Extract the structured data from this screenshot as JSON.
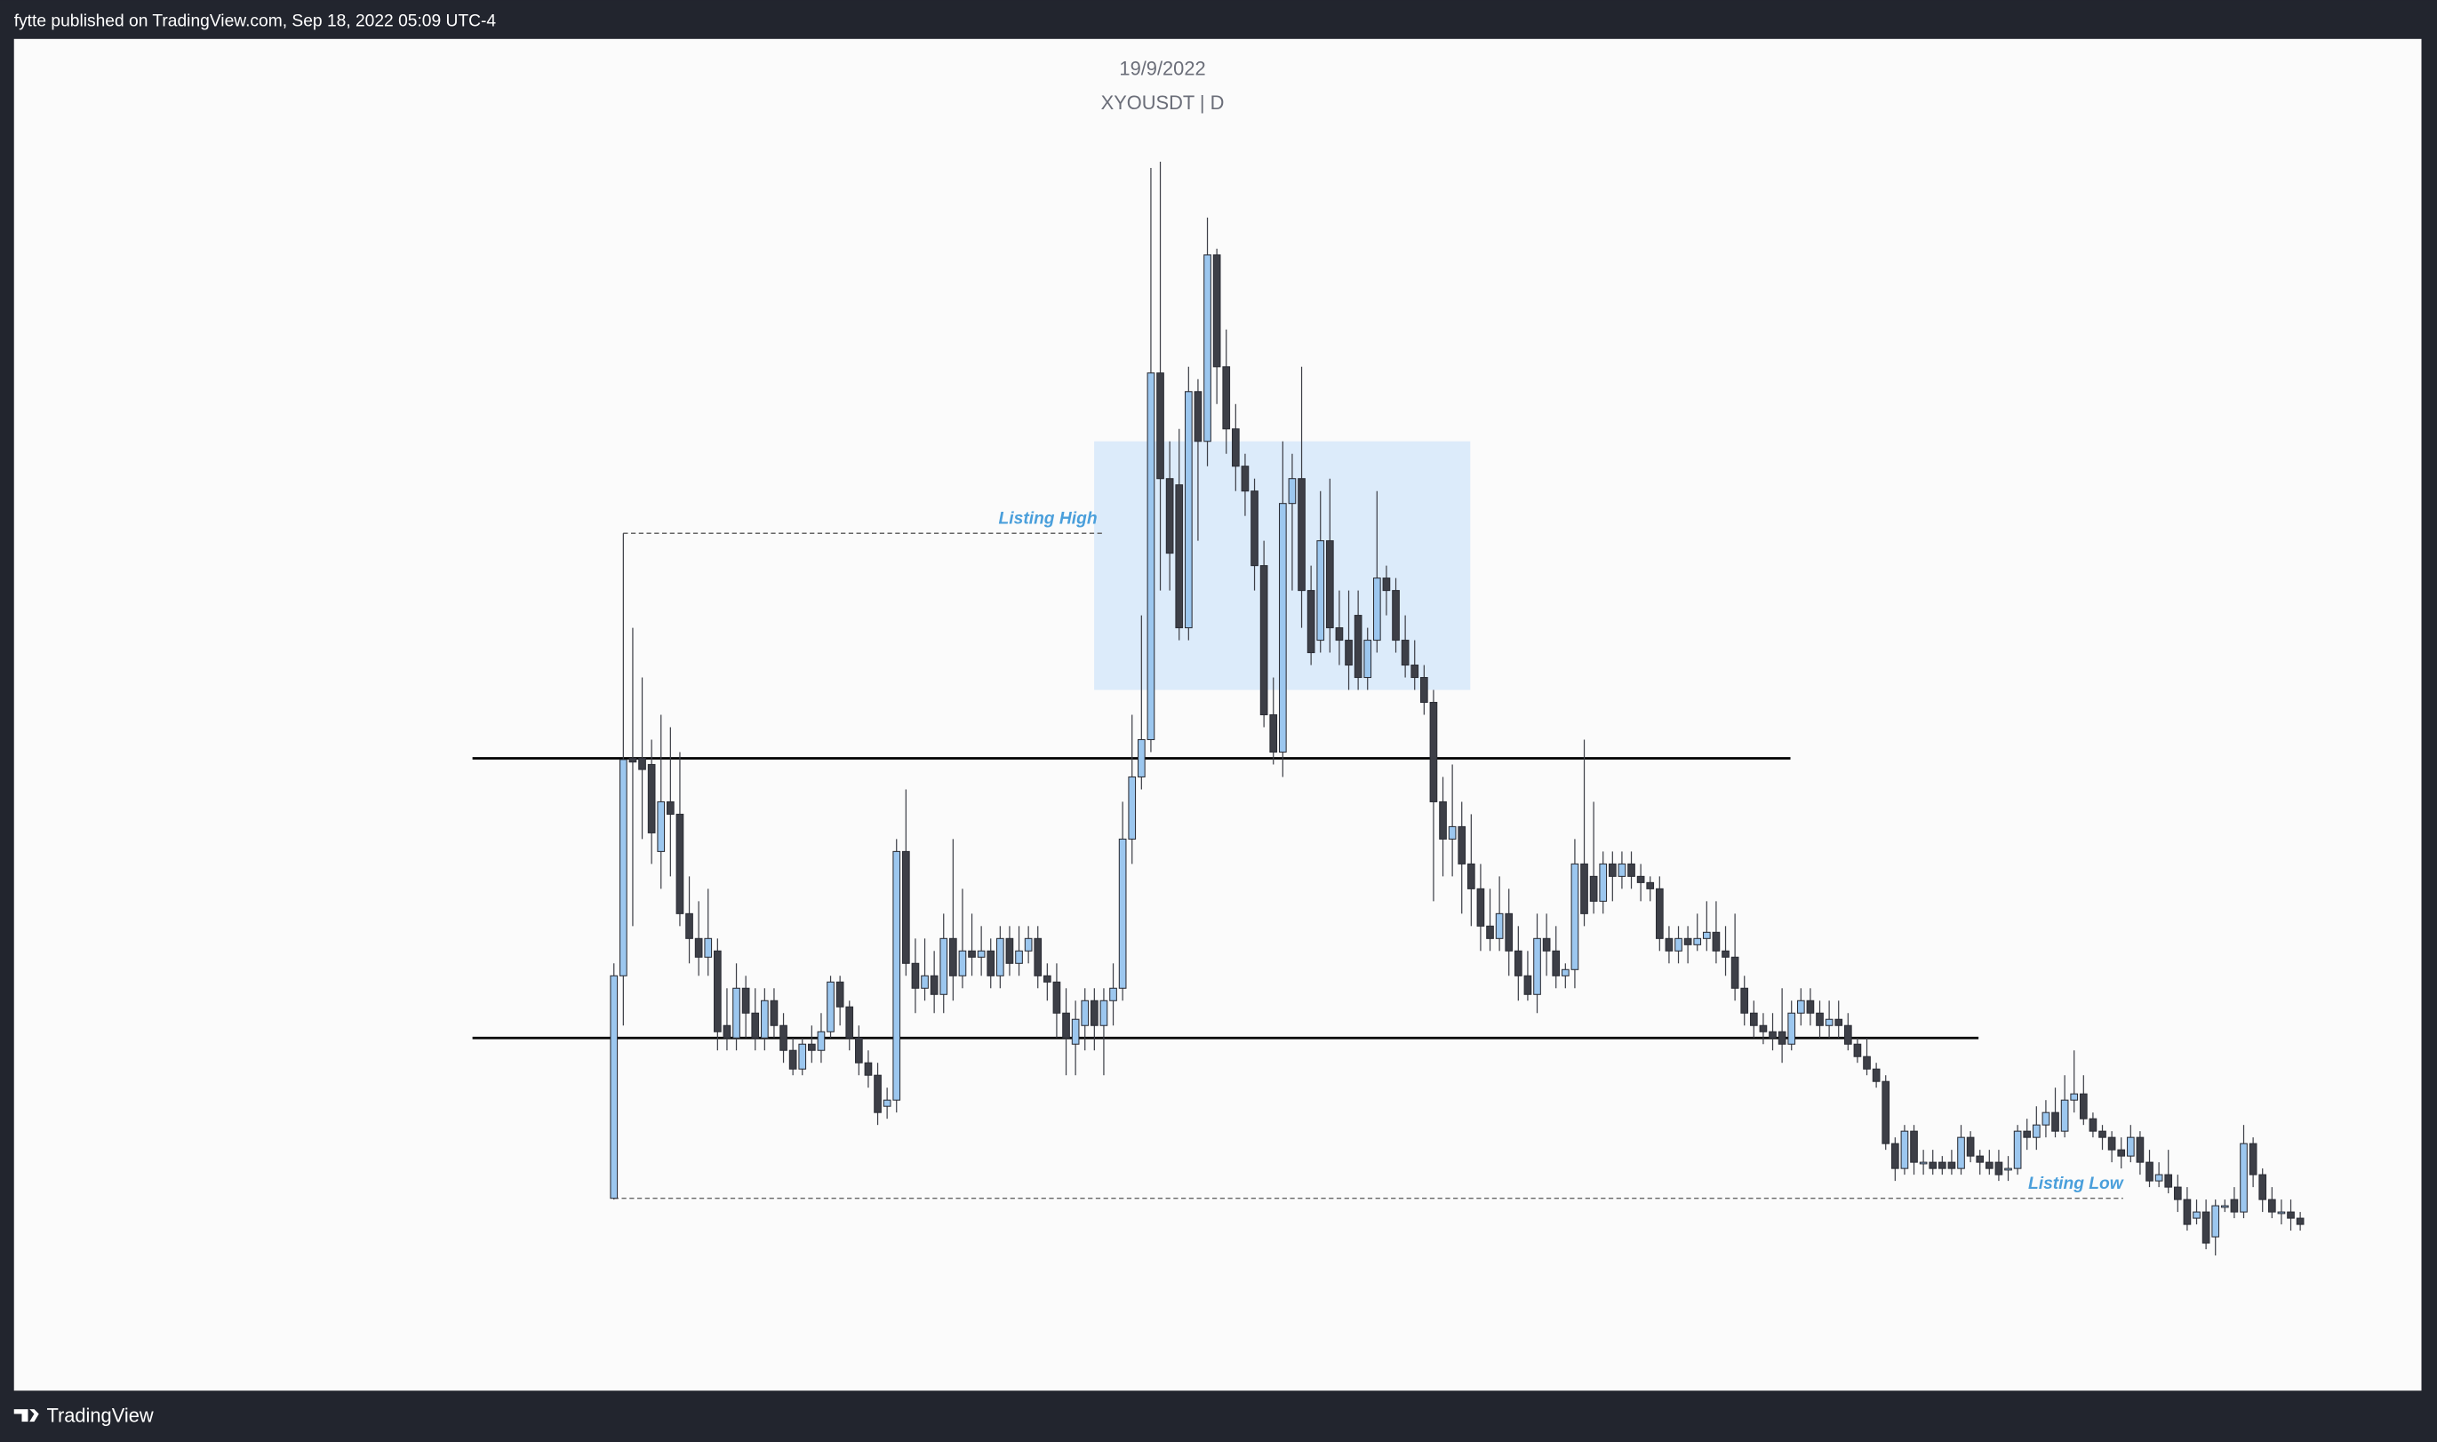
{
  "header": {
    "text": "fytte published on TradingView.com, Sep 18, 2022 05:09 UTC-4"
  },
  "footer": {
    "brand": "TradingView"
  },
  "chart_data": {
    "type": "candlestick",
    "title": "19/9/2022",
    "subtitle": "XYOUSDT | D",
    "ylim": [
      0,
      100
    ],
    "up_color": "#9cc7ef",
    "down_color": "#3d3f47",
    "candles": [
      [
        11.1,
        30,
        11,
        29
      ],
      [
        29,
        64.6,
        25,
        46.4
      ],
      [
        46.5,
        57,
        33,
        46.2
      ],
      [
        46.5,
        53,
        40,
        45.6
      ],
      [
        46,
        48,
        38,
        40.5
      ],
      [
        39,
        50,
        36,
        43
      ],
      [
        43,
        49,
        37,
        42
      ],
      [
        42,
        47,
        33,
        34
      ],
      [
        34,
        37,
        30,
        32
      ],
      [
        32,
        35,
        29,
        30.5
      ],
      [
        30.5,
        36,
        29,
        32
      ],
      [
        31,
        32,
        23,
        24.5
      ],
      [
        25,
        28,
        23,
        24
      ],
      [
        24,
        30,
        23,
        28
      ],
      [
        28,
        29,
        24,
        26
      ],
      [
        26,
        28,
        23,
        24
      ],
      [
        24,
        28,
        23,
        27
      ],
      [
        27,
        28,
        24,
        25
      ],
      [
        25,
        26,
        22,
        23
      ],
      [
        23,
        24,
        21,
        21.5
      ],
      [
        21.5,
        24,
        21,
        23.5
      ],
      [
        23.5,
        25,
        22,
        23
      ],
      [
        23,
        26,
        22,
        24.5
      ],
      [
        24.5,
        29,
        24,
        28.5
      ],
      [
        28.5,
        29,
        25,
        26.5
      ],
      [
        26.5,
        27,
        23,
        24
      ],
      [
        24,
        25,
        21,
        22
      ],
      [
        22,
        23,
        20,
        21
      ],
      [
        21,
        22,
        17,
        18
      ],
      [
        18.5,
        20,
        17.5,
        19
      ],
      [
        19,
        40,
        18,
        39
      ],
      [
        39,
        44,
        29,
        30
      ],
      [
        30,
        32,
        26,
        28
      ],
      [
        28,
        32,
        27,
        29
      ],
      [
        29,
        31,
        26,
        27.5
      ],
      [
        27.5,
        34,
        26,
        32
      ],
      [
        32,
        40,
        27,
        29
      ],
      [
        29,
        36,
        28,
        31
      ],
      [
        31,
        34,
        29,
        30.5
      ],
      [
        30.5,
        33,
        29,
        31
      ],
      [
        31,
        32,
        28,
        29
      ],
      [
        29,
        33,
        28,
        32
      ],
      [
        32,
        33,
        29,
        30
      ],
      [
        30,
        33,
        29,
        31
      ],
      [
        31,
        33,
        30,
        32
      ],
      [
        32,
        33,
        28,
        29
      ],
      [
        29,
        30,
        27,
        28.5
      ],
      [
        28.5,
        30,
        24,
        26
      ],
      [
        26,
        28,
        21,
        24
      ],
      [
        23.5,
        27,
        21,
        25.5
      ],
      [
        25,
        28,
        23,
        27
      ],
      [
        27,
        28,
        23,
        25
      ],
      [
        25,
        28,
        21,
        27
      ],
      [
        27,
        30,
        25,
        28
      ],
      [
        28,
        43,
        27,
        40
      ],
      [
        40,
        50,
        38,
        45
      ],
      [
        45,
        58,
        44,
        48
      ],
      [
        48,
        94,
        47,
        77.5
      ],
      [
        77.5,
        94.5,
        60,
        69
      ],
      [
        69,
        72,
        60,
        63
      ],
      [
        68.5,
        73,
        56,
        57
      ],
      [
        57,
        78,
        56,
        76
      ],
      [
        76,
        77,
        64,
        72
      ],
      [
        72,
        90,
        70,
        87
      ],
      [
        87,
        87.5,
        75,
        78
      ],
      [
        78,
        81,
        71,
        73
      ],
      [
        73,
        75,
        68,
        70
      ],
      [
        70,
        71,
        66,
        68
      ],
      [
        68,
        69,
        60,
        62
      ],
      [
        62,
        64,
        49,
        50
      ],
      [
        50,
        53,
        46,
        47
      ],
      [
        47,
        72,
        45,
        67
      ],
      [
        67,
        71,
        60,
        69
      ],
      [
        69,
        78,
        57,
        60
      ],
      [
        60,
        62,
        54,
        55
      ],
      [
        56,
        68,
        55,
        64
      ],
      [
        64,
        69,
        55,
        57
      ],
      [
        57,
        60,
        54,
        56
      ],
      [
        56,
        60,
        52,
        54
      ],
      [
        58,
        60,
        52,
        53
      ],
      [
        53,
        57,
        52,
        56
      ],
      [
        56,
        68,
        55,
        61
      ],
      [
        61,
        62,
        58,
        60
      ],
      [
        60,
        61,
        55,
        56
      ],
      [
        56,
        58,
        53,
        54
      ],
      [
        54,
        56,
        52,
        53
      ],
      [
        53,
        54,
        50,
        51
      ],
      [
        51,
        52,
        35,
        43
      ],
      [
        43,
        45,
        37,
        40
      ],
      [
        40,
        46,
        37,
        41
      ],
      [
        41,
        43,
        34,
        38
      ],
      [
        38,
        42,
        33,
        36
      ],
      [
        36,
        38,
        31,
        33
      ],
      [
        33,
        36,
        31,
        32
      ],
      [
        32,
        37,
        31,
        34
      ],
      [
        34,
        36,
        29,
        31
      ],
      [
        31,
        33,
        27,
        29
      ],
      [
        29,
        31,
        27,
        27.5
      ],
      [
        27.5,
        34,
        26,
        32
      ],
      [
        32,
        34,
        29,
        31
      ],
      [
        31,
        33,
        28,
        29
      ],
      [
        29,
        30,
        28,
        29.5
      ],
      [
        29.5,
        40,
        28,
        38
      ],
      [
        38,
        48,
        33,
        34
      ],
      [
        37,
        43,
        34,
        35
      ],
      [
        35,
        39,
        34,
        38
      ],
      [
        38,
        39,
        35,
        37
      ],
      [
        37,
        39,
        36,
        38
      ],
      [
        38,
        39,
        36,
        37
      ],
      [
        37,
        38,
        35,
        36.5
      ],
      [
        36.5,
        37,
        35,
        36
      ],
      [
        36,
        37,
        31,
        32
      ],
      [
        32,
        33,
        30,
        31
      ],
      [
        31,
        33,
        30,
        32
      ],
      [
        32,
        33,
        30,
        31.5
      ],
      [
        31.5,
        34,
        31,
        32
      ],
      [
        32,
        35,
        31,
        32.5
      ],
      [
        32.5,
        35,
        30,
        31
      ],
      [
        31,
        33,
        29,
        30.5
      ],
      [
        30.5,
        34,
        27,
        28
      ],
      [
        28,
        29,
        25,
        26
      ],
      [
        26,
        27,
        24,
        25
      ],
      [
        25,
        26,
        23.5,
        24.5
      ],
      [
        24.5,
        26,
        23,
        24
      ],
      [
        24.5,
        28,
        22,
        23.5
      ],
      [
        23.5,
        27,
        23,
        26
      ],
      [
        26,
        28,
        25,
        27
      ],
      [
        27,
        28,
        25,
        26
      ],
      [
        26,
        27,
        24,
        25
      ],
      [
        25,
        27,
        24,
        25.5
      ],
      [
        25.5,
        27,
        24,
        25
      ],
      [
        25,
        26,
        23,
        23.5
      ],
      [
        23.5,
        24,
        22,
        22.5
      ],
      [
        22.5,
        24,
        21,
        21.5
      ],
      [
        21.5,
        22,
        20,
        20.5
      ],
      [
        20.5,
        21,
        15,
        15.5
      ],
      [
        15.5,
        16,
        12.5,
        13.5
      ],
      [
        13.5,
        17,
        13,
        16.5
      ],
      [
        16.5,
        17,
        13,
        14
      ],
      [
        14,
        15,
        13,
        14
      ],
      [
        14,
        15,
        13,
        13.5
      ],
      [
        14,
        14.5,
        13,
        13.5
      ],
      [
        14,
        15,
        13,
        13.5
      ],
      [
        13.5,
        17,
        13,
        16
      ],
      [
        16,
        16.5,
        14,
        14.5
      ],
      [
        14.5,
        15,
        13,
        14
      ],
      [
        14,
        15,
        13,
        13.5
      ],
      [
        14,
        15,
        12.5,
        13
      ],
      [
        13.5,
        14.5,
        12.5,
        13.5
      ],
      [
        13.5,
        17,
        13,
        16.5
      ],
      [
        16.5,
        17.5,
        15,
        16
      ],
      [
        16,
        18.5,
        15,
        17
      ],
      [
        17,
        19,
        16,
        18
      ],
      [
        18,
        20,
        16,
        16.5
      ],
      [
        16.5,
        21,
        16,
        19
      ],
      [
        19,
        23,
        18,
        19.5
      ],
      [
        19.5,
        21,
        17,
        17.5
      ],
      [
        17.5,
        18,
        16,
        16.5
      ],
      [
        16.5,
        17,
        15,
        16
      ],
      [
        16,
        16.5,
        14,
        15
      ],
      [
        15,
        16,
        13.5,
        14.5
      ],
      [
        14.5,
        17,
        14,
        16
      ],
      [
        16,
        16.5,
        13,
        14
      ],
      [
        14,
        15,
        12,
        12.5
      ],
      [
        12.5,
        14,
        12,
        13
      ],
      [
        13,
        15,
        11.5,
        12
      ],
      [
        12,
        13,
        10,
        11
      ],
      [
        11,
        12,
        8.5,
        9
      ],
      [
        9.5,
        11,
        9,
        10
      ],
      [
        10,
        11,
        7,
        7.5
      ],
      [
        8,
        11,
        6.5,
        10.5
      ],
      [
        10.5,
        11,
        10,
        10.5
      ],
      [
        11,
        12,
        9.5,
        10
      ],
      [
        10,
        17,
        9.5,
        15.5
      ],
      [
        15.5,
        16,
        12,
        13
      ],
      [
        13,
        13.5,
        10,
        11
      ],
      [
        11,
        12,
        9.5,
        10
      ],
      [
        10,
        11,
        9,
        10
      ],
      [
        10,
        11,
        8.5,
        9.5
      ],
      [
        9.5,
        10,
        8.5,
        9
      ]
    ],
    "levels": [
      {
        "value": 46.5,
        "color": "#000000"
      },
      {
        "value": 24,
        "color": "#000000"
      }
    ],
    "zone": {
      "range": [
        52,
        72
      ],
      "color": "#dcebfa"
    },
    "annotations": [
      {
        "text": "Listing High",
        "value": 64.6
      },
      {
        "text": "Listing Low",
        "value": 11.1
      }
    ]
  }
}
